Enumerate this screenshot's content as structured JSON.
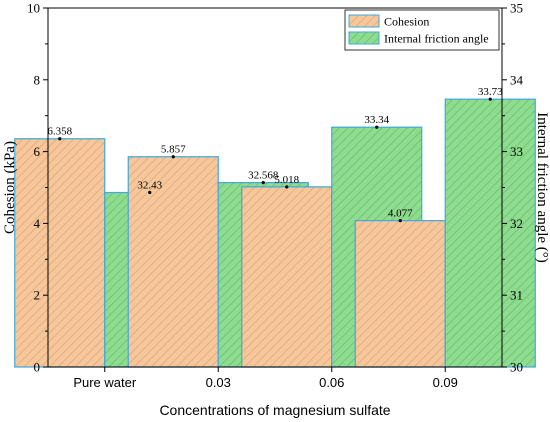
{
  "chart_data": {
    "type": "bar",
    "xlabel": "Concentrations of magnesium sulfate",
    "categories": [
      "Pure water",
      "0.03",
      "0.06",
      "0.09"
    ],
    "series": [
      {
        "name": "Cohesion",
        "axis": "left",
        "values": [
          6.358,
          5.857,
          5.018,
          4.077
        ],
        "labels": [
          "6.358",
          "5.857",
          "5.018",
          "4.077"
        ],
        "fill": "#f5c79b",
        "hatch": "#e0a374"
      },
      {
        "name": "Internal friction angle",
        "axis": "right",
        "values": [
          32.43,
          32.568,
          33.34,
          33.73
        ],
        "labels": [
          "32.43",
          "32.568",
          "33.34",
          "33.73"
        ],
        "fill": "#8fdb8f",
        "hatch": "#5fbf68"
      }
    ],
    "ylabel_left": "Cohesion (kPa)",
    "ylim_left": [
      0,
      10
    ],
    "yticks_left": [
      "0",
      "2",
      "4",
      "6",
      "8",
      "10"
    ],
    "ylabel_right": "Internal friction angle (°)",
    "ylim_right": [
      30,
      35
    ],
    "yticks_right": [
      "30",
      "31",
      "32",
      "33",
      "34",
      "35"
    ],
    "bar_edge_color": "#3fa9e0",
    "grid": false,
    "legend_position": "top-right"
  }
}
